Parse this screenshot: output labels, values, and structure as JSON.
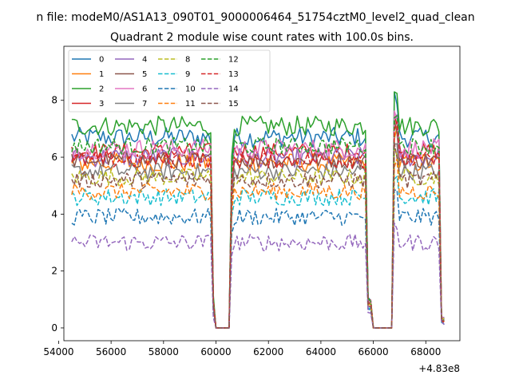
{
  "figure": {
    "suptitle": "n file: modeM0/AS1A13_090T01_9000006464_51754cztM0_level2_quad_clean"
  },
  "chart_data": {
    "type": "line",
    "title": "Quadrant 2 module wise count rates with 100.0s bins.",
    "xlabel": "",
    "ylabel": "",
    "x_offset_label": "+4.83e8",
    "xlim": [
      54200,
      69300
    ],
    "ylim": [
      -0.45,
      9.9
    ],
    "xticks": [
      54000,
      56000,
      58000,
      60000,
      62000,
      64000,
      66000,
      68000
    ],
    "xtick_labels": [
      "54000",
      "56000",
      "58000",
      "60000",
      "62000",
      "64000",
      "66000",
      "68000"
    ],
    "yticks": [
      0,
      2,
      4,
      6,
      8
    ],
    "ytick_labels": [
      "0",
      "2",
      "4",
      "6",
      "8"
    ],
    "grid": false,
    "legend": {
      "placement": "top-left",
      "columns": 4
    },
    "x_start": 54500,
    "x_step": 100,
    "segments": [
      {
        "from": 54500,
        "to": 59700,
        "level": 1.0
      },
      {
        "from": 59700,
        "to": 59900,
        "level": 1.0
      },
      {
        "from": 59900,
        "to": 60000,
        "level": 0.15
      },
      {
        "from": 60000,
        "to": 60600,
        "level": 0.0
      },
      {
        "from": 60600,
        "to": 60700,
        "level": 0.85
      },
      {
        "from": 60700,
        "to": 65800,
        "level": 1.0
      },
      {
        "from": 65800,
        "to": 66000,
        "level": 0.15
      },
      {
        "from": 66000,
        "to": 66800,
        "level": 0.0
      },
      {
        "from": 66800,
        "to": 67000,
        "level": 1.2
      },
      {
        "from": 67000,
        "to": 68600,
        "level": 1.0
      },
      {
        "from": 68600,
        "to": 68700,
        "level": 0.05
      }
    ],
    "series": [
      {
        "name": "0",
        "color": "#1f77b4",
        "dash": "solid",
        "mean": 6.7,
        "noise": 0.35
      },
      {
        "name": "1",
        "color": "#ff7f0e",
        "dash": "solid",
        "mean": 5.8,
        "noise": 0.35
      },
      {
        "name": "2",
        "color": "#2ca02c",
        "dash": "solid",
        "mean": 7.1,
        "noise": 0.35
      },
      {
        "name": "3",
        "color": "#d62728",
        "dash": "solid",
        "mean": 6.2,
        "noise": 0.3
      },
      {
        "name": "4",
        "color": "#9467bd",
        "dash": "solid",
        "mean": 6.0,
        "noise": 0.35
      },
      {
        "name": "5",
        "color": "#8c564b",
        "dash": "solid",
        "mean": 5.9,
        "noise": 0.3
      },
      {
        "name": "6",
        "color": "#e377c2",
        "dash": "solid",
        "mean": 6.3,
        "noise": 0.35
      },
      {
        "name": "7",
        "color": "#7f7f7f",
        "dash": "solid",
        "mean": 5.5,
        "noise": 0.3
      },
      {
        "name": "8",
        "color": "#bcbd22",
        "dash": "dashed",
        "mean": 5.3,
        "noise": 0.3
      },
      {
        "name": "9",
        "color": "#17becf",
        "dash": "dashed",
        "mean": 4.6,
        "noise": 0.3
      },
      {
        "name": "10",
        "color": "#1f77b4",
        "dash": "dashed",
        "mean": 3.9,
        "noise": 0.3
      },
      {
        "name": "11",
        "color": "#ff7f0e",
        "dash": "dashed",
        "mean": 4.8,
        "noise": 0.3
      },
      {
        "name": "12",
        "color": "#2ca02c",
        "dash": "dashed",
        "mean": 6.4,
        "noise": 0.3
      },
      {
        "name": "13",
        "color": "#d62728",
        "dash": "dashed",
        "mean": 5.9,
        "noise": 0.3
      },
      {
        "name": "14",
        "color": "#9467bd",
        "dash": "dashed",
        "mean": 3.0,
        "noise": 0.3
      },
      {
        "name": "15",
        "color": "#8c564b",
        "dash": "dashed",
        "mean": 5.2,
        "noise": 0.3
      }
    ]
  }
}
